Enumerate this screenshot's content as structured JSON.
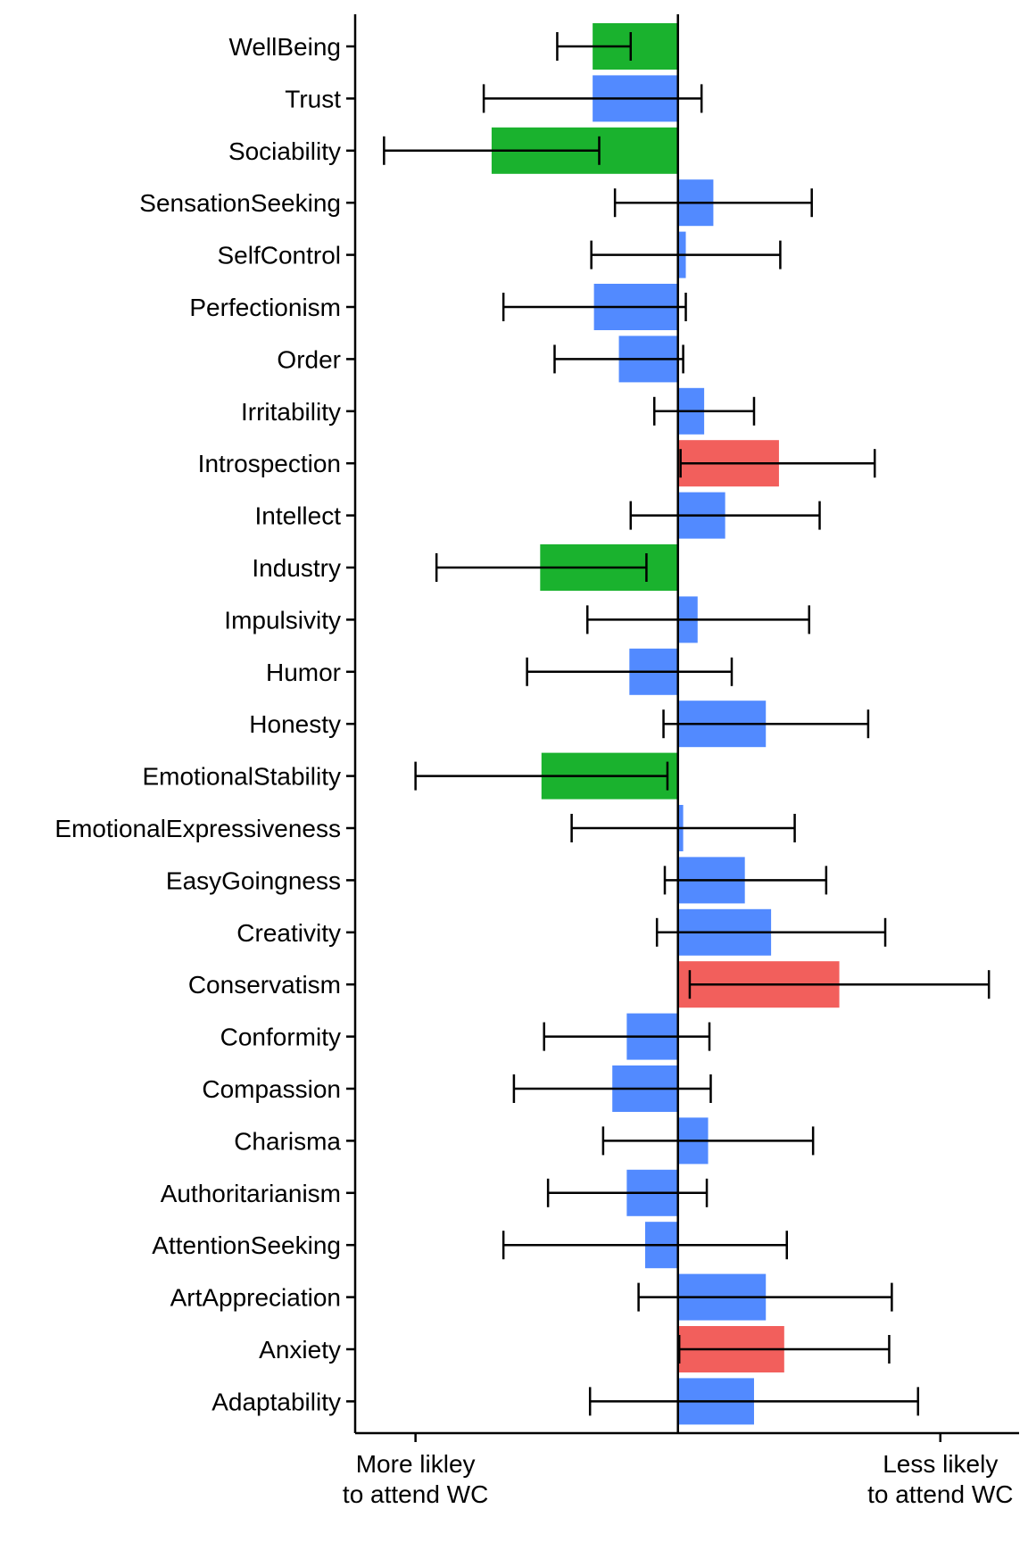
{
  "chart_data": {
    "type": "bar",
    "orientation": "horizontal",
    "title": "",
    "xlabel": "",
    "ylabel": "",
    "grid": false,
    "legend": "none",
    "xlim": [
      -1.23,
      1.3
    ],
    "x_ticks": [
      {
        "value": -1,
        "label": "More likley\nto attend WC"
      },
      {
        "value": 1,
        "label": "Less likely\nto attend WC"
      }
    ],
    "colors": {
      "green": "#1AB22E",
      "blue": "#528AFF",
      "red": "#F25F5C"
    },
    "categories": [
      "WellBeing",
      "Trust",
      "Sociability",
      "SensationSeeking",
      "SelfControl",
      "Perfectionism",
      "Order",
      "Irritability",
      "Introspection",
      "Intellect",
      "Industry",
      "Impulsivity",
      "Humor",
      "Honesty",
      "EmotionalStability",
      "EmotionalExpressiveness",
      "EasyGoingness",
      "Creativity",
      "Conservatism",
      "Conformity",
      "Compassion",
      "Charisma",
      "Authoritarianism",
      "AttentionSeeking",
      "ArtAppreciation",
      "Anxiety",
      "Adaptability"
    ],
    "values": [
      -0.325,
      -0.325,
      -0.71,
      0.135,
      0.03,
      -0.32,
      -0.225,
      0.1,
      0.385,
      0.18,
      -0.525,
      0.075,
      -0.185,
      0.335,
      -0.52,
      0.02,
      0.255,
      0.355,
      0.615,
      -0.195,
      -0.25,
      0.115,
      -0.195,
      -0.125,
      0.335,
      0.405,
      0.29
    ],
    "ci_low": [
      -0.46,
      -0.74,
      -1.12,
      -0.24,
      -0.33,
      -0.665,
      -0.47,
      -0.09,
      0.01,
      -0.18,
      -0.92,
      -0.345,
      -0.575,
      -0.055,
      -1.0,
      -0.405,
      -0.05,
      -0.08,
      0.045,
      -0.51,
      -0.625,
      -0.285,
      -0.495,
      -0.665,
      -0.15,
      0.005,
      -0.335
    ],
    "ci_high": [
      -0.18,
      0.09,
      -0.3,
      0.51,
      0.39,
      0.03,
      0.02,
      0.29,
      0.75,
      0.54,
      -0.12,
      0.5,
      0.205,
      0.725,
      -0.04,
      0.445,
      0.565,
      0.79,
      1.185,
      0.12,
      0.125,
      0.515,
      0.11,
      0.415,
      0.815,
      0.805,
      0.915
    ],
    "bar_colors": [
      "green",
      "blue",
      "green",
      "blue",
      "blue",
      "blue",
      "blue",
      "blue",
      "red",
      "blue",
      "green",
      "blue",
      "blue",
      "blue",
      "green",
      "blue",
      "blue",
      "blue",
      "red",
      "blue",
      "blue",
      "blue",
      "blue",
      "blue",
      "blue",
      "red",
      "blue"
    ]
  }
}
